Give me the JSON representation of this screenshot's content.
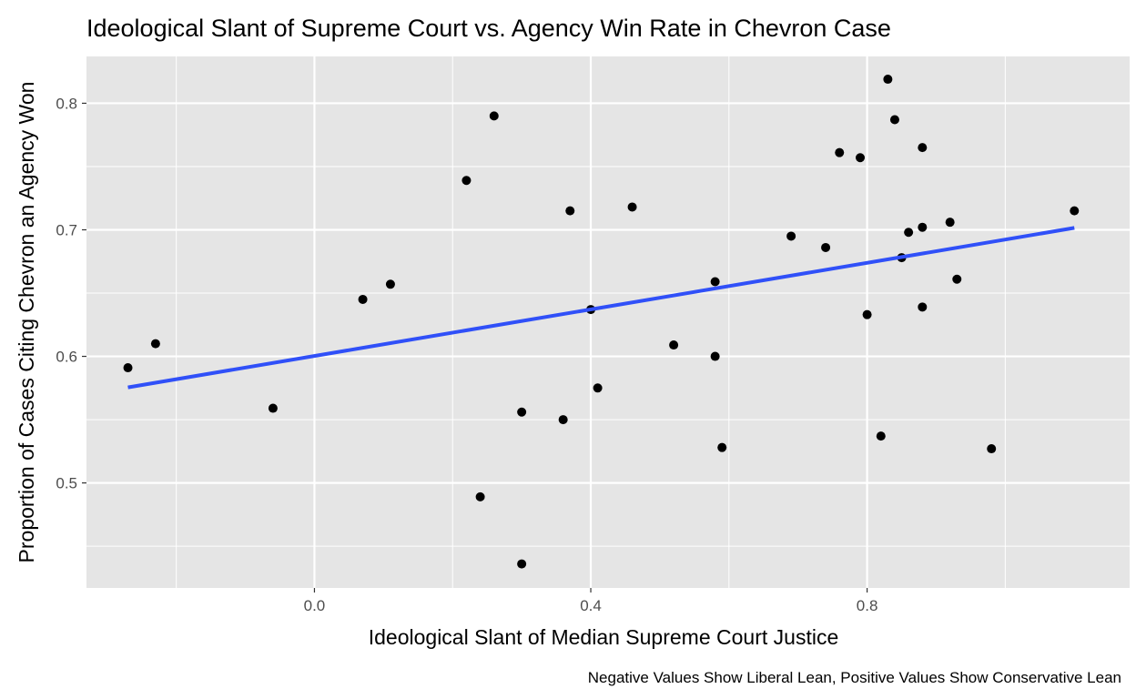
{
  "chart_data": {
    "type": "scatter",
    "title": "Ideological Slant of Supreme Court vs. Agency Win Rate in Chevron Case",
    "xlabel": "Ideological Slant of Median Supreme Court Justice",
    "ylabel": "Proportion of Cases Citing Chevron an Agency Won",
    "caption": "Negative Values Show Liberal Lean, Positive Values Show Conservative Lean",
    "xlim": [
      -0.33,
      1.18
    ],
    "ylim": [
      0.417,
      0.837
    ],
    "x_ticks": [
      0.0,
      0.4,
      0.8
    ],
    "x_tick_labels": [
      "0.0",
      "0.4",
      "0.8"
    ],
    "y_ticks": [
      0.5,
      0.6,
      0.7,
      0.8
    ],
    "y_tick_labels": [
      "0.5",
      "0.6",
      "0.7",
      "0.8"
    ],
    "grid": true,
    "colors": {
      "panel": "#e5e5e5",
      "grid": "#ffffff",
      "points": "#000000",
      "trend": "#3050f8"
    },
    "points": [
      {
        "x": -0.27,
        "y": 0.591
      },
      {
        "x": -0.23,
        "y": 0.61
      },
      {
        "x": -0.06,
        "y": 0.559
      },
      {
        "x": 0.07,
        "y": 0.645
      },
      {
        "x": 0.11,
        "y": 0.657
      },
      {
        "x": 0.22,
        "y": 0.739
      },
      {
        "x": 0.24,
        "y": 0.489
      },
      {
        "x": 0.26,
        "y": 0.79
      },
      {
        "x": 0.3,
        "y": 0.556
      },
      {
        "x": 0.3,
        "y": 0.436
      },
      {
        "x": 0.36,
        "y": 0.55
      },
      {
        "x": 0.37,
        "y": 0.715
      },
      {
        "x": 0.4,
        "y": 0.637
      },
      {
        "x": 0.41,
        "y": 0.575
      },
      {
        "x": 0.46,
        "y": 0.718
      },
      {
        "x": 0.52,
        "y": 0.609
      },
      {
        "x": 0.58,
        "y": 0.659
      },
      {
        "x": 0.58,
        "y": 0.6
      },
      {
        "x": 0.59,
        "y": 0.528
      },
      {
        "x": 0.69,
        "y": 0.695
      },
      {
        "x": 0.74,
        "y": 0.686
      },
      {
        "x": 0.76,
        "y": 0.761
      },
      {
        "x": 0.79,
        "y": 0.757
      },
      {
        "x": 0.8,
        "y": 0.633
      },
      {
        "x": 0.82,
        "y": 0.537
      },
      {
        "x": 0.83,
        "y": 0.819
      },
      {
        "x": 0.84,
        "y": 0.787
      },
      {
        "x": 0.85,
        "y": 0.678
      },
      {
        "x": 0.86,
        "y": 0.698
      },
      {
        "x": 0.88,
        "y": 0.765
      },
      {
        "x": 0.88,
        "y": 0.702
      },
      {
        "x": 0.88,
        "y": 0.639
      },
      {
        "x": 0.92,
        "y": 0.706
      },
      {
        "x": 0.93,
        "y": 0.661
      },
      {
        "x": 0.98,
        "y": 0.527
      },
      {
        "x": 1.1,
        "y": 0.715
      }
    ],
    "trend_line": {
      "x": [
        -0.27,
        1.1
      ],
      "y": [
        0.5755,
        0.7015
      ]
    }
  }
}
